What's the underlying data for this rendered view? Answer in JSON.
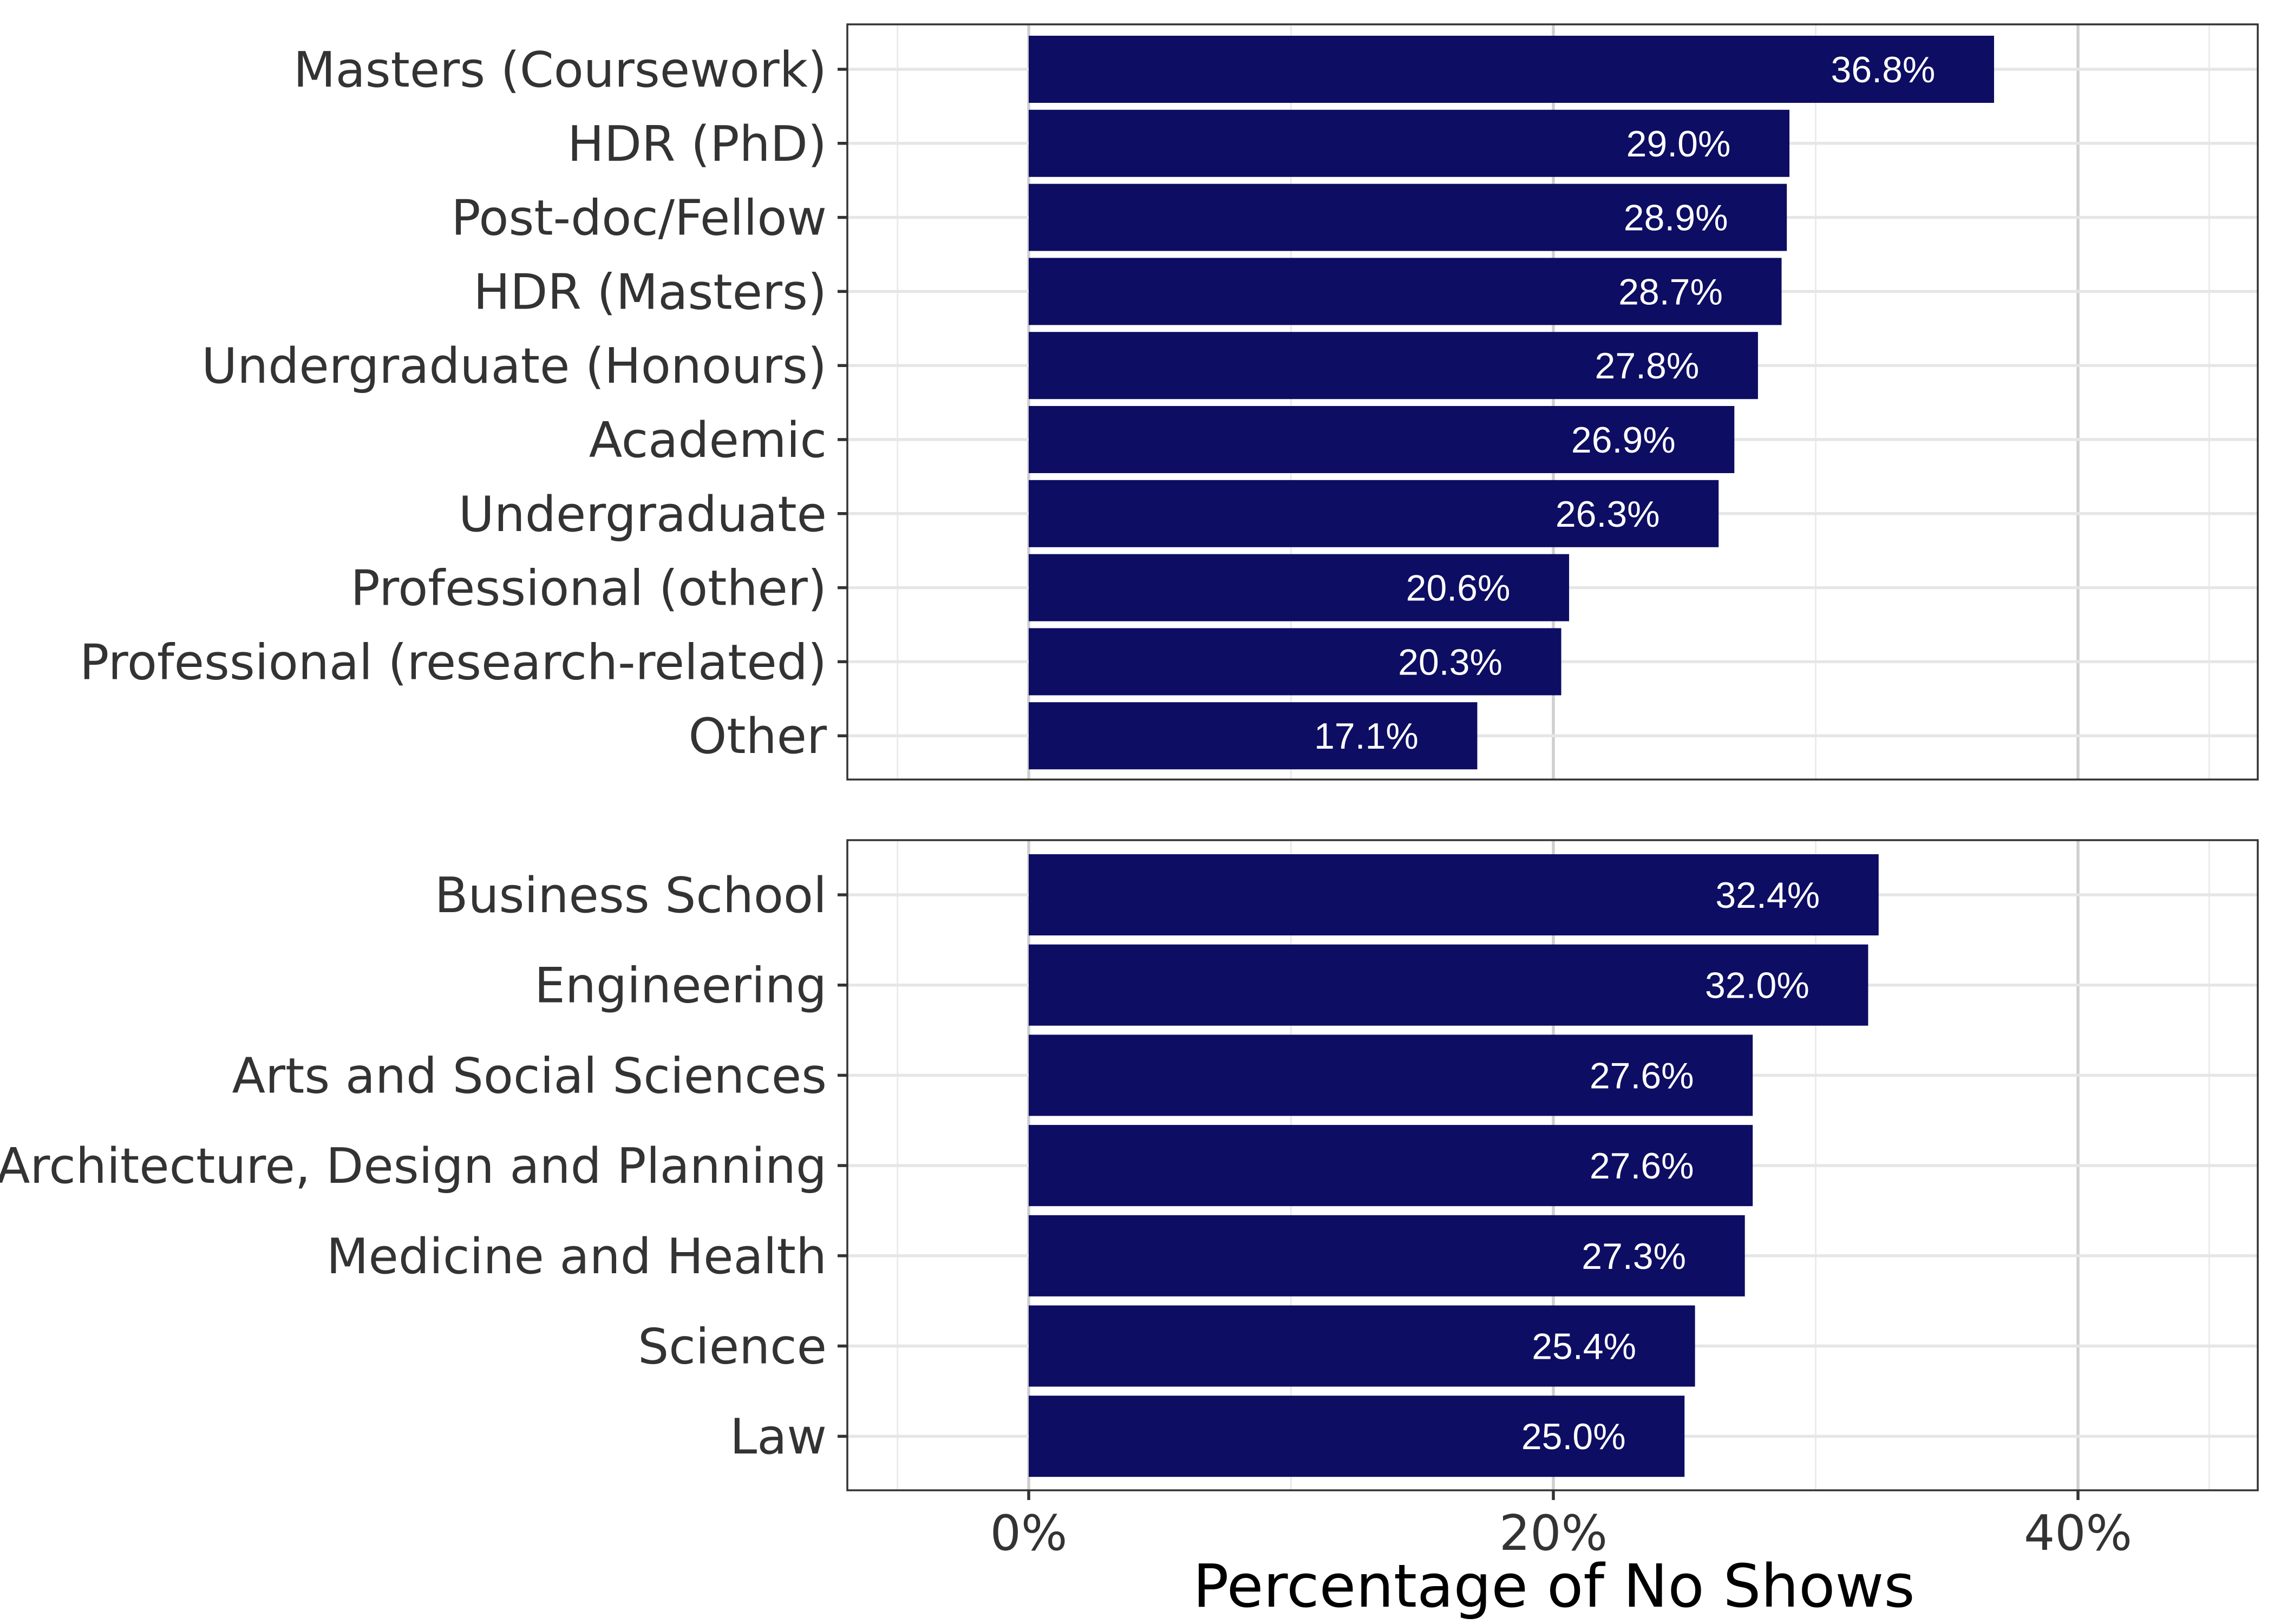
{
  "chart_data": {
    "type": "bar",
    "orientation": "horizontal",
    "xlabel": "Percentage of No Shows",
    "xlim": [
      -7,
      47
    ],
    "x_ticks": [
      {
        "value": 0,
        "label": "0%"
      },
      {
        "value": 20,
        "label": "20%"
      },
      {
        "value": 40,
        "label": "40%"
      }
    ],
    "x_minor": [
      10,
      30
    ],
    "bar_color": "#0d0d63",
    "label_color": "#ffffff",
    "panels": [
      {
        "name": "role",
        "categories": [
          "Masters (Coursework)",
          "HDR (PhD)",
          "Post-doc/Fellow",
          "HDR (Masters)",
          "Undergraduate (Honours)",
          "Academic",
          "Undergraduate",
          "Professional (other)",
          "Professional (research-related)",
          "Other"
        ],
        "values": [
          36.8,
          29.0,
          28.9,
          28.7,
          27.8,
          26.9,
          26.3,
          20.6,
          20.3,
          17.1
        ],
        "value_labels": [
          "36.8%",
          "29.0%",
          "28.9%",
          "28.7%",
          "27.8%",
          "26.9%",
          "26.3%",
          "20.6%",
          "20.3%",
          "17.1%"
        ]
      },
      {
        "name": "faculty",
        "categories": [
          "Business School",
          "Engineering",
          "Arts and Social Sciences",
          "Architecture, Design and Planning",
          "Medicine and Health",
          "Science",
          "Law"
        ],
        "values": [
          32.4,
          32.0,
          27.6,
          27.6,
          27.3,
          25.4,
          25.0
        ],
        "value_labels": [
          "32.4%",
          "32.0%",
          "27.6%",
          "27.6%",
          "27.3%",
          "25.4%",
          "25.0%"
        ]
      }
    ]
  }
}
